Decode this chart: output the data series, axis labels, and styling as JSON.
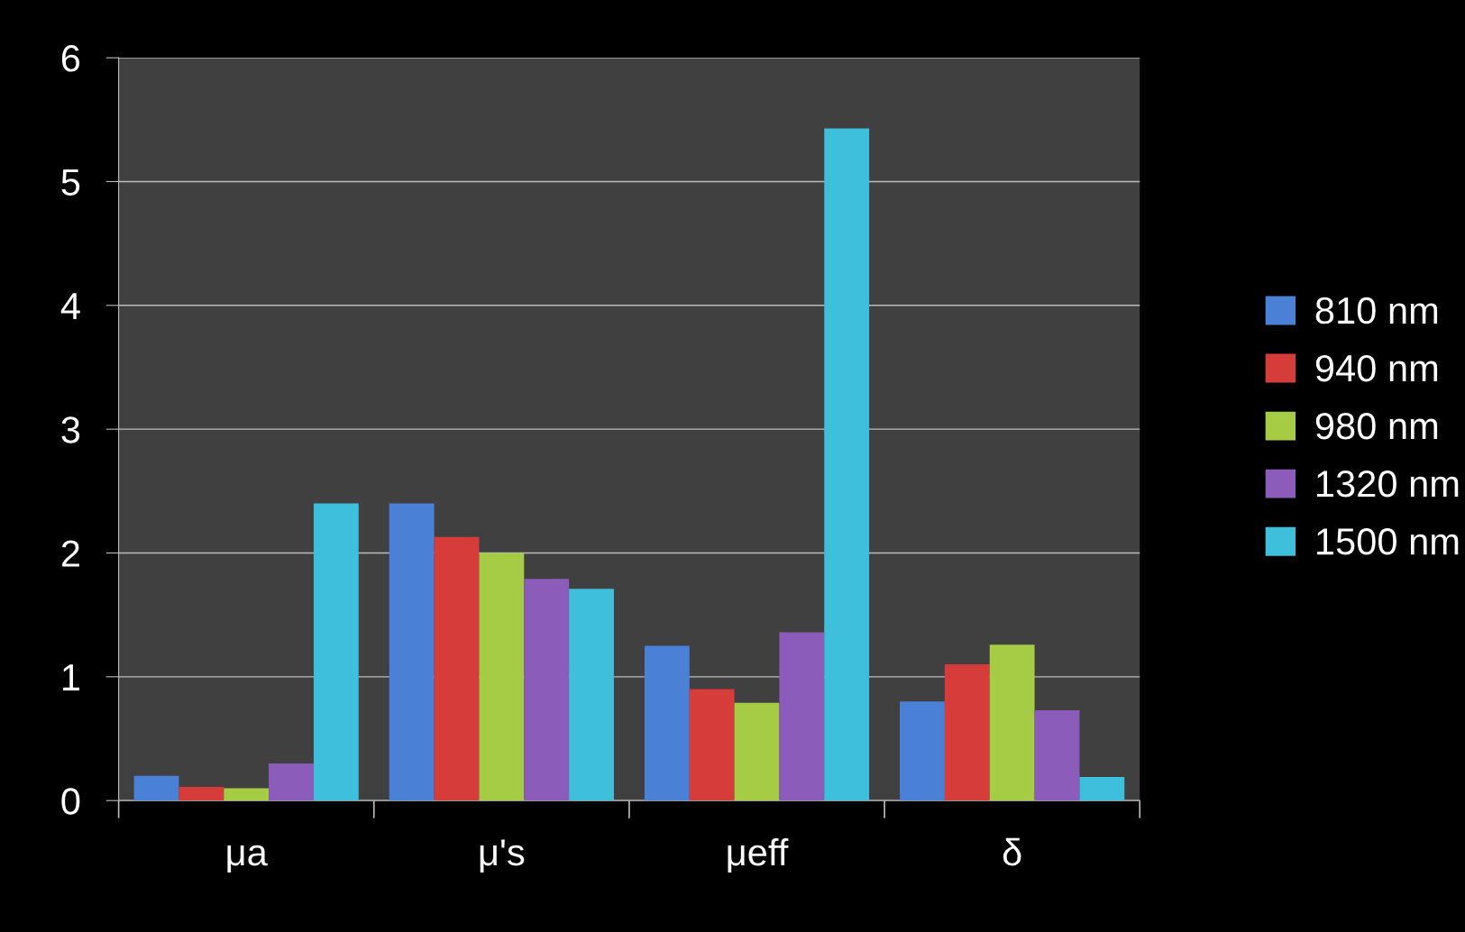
{
  "chart_data": {
    "type": "bar",
    "categories": [
      "μa",
      "μ's",
      "μeff",
      "δ"
    ],
    "series": [
      {
        "name": "810 nm",
        "color": "#4a80d6",
        "values": [
          0.2,
          2.4,
          1.25,
          0.8
        ]
      },
      {
        "name": "940 nm",
        "color": "#d63c3a",
        "values": [
          0.11,
          2.13,
          0.9,
          1.1
        ]
      },
      {
        "name": "980 nm",
        "color": "#a6cc46",
        "values": [
          0.1,
          2.0,
          0.79,
          1.26
        ]
      },
      {
        "name": "1320 nm",
        "color": "#8c5cba",
        "values": [
          0.3,
          1.79,
          1.36,
          0.73
        ]
      },
      {
        "name": "1500 nm",
        "color": "#3ebfdc",
        "values": [
          2.4,
          1.71,
          5.43,
          0.19
        ]
      }
    ],
    "ylim": [
      0,
      6
    ],
    "yticks": [
      0,
      1,
      2,
      3,
      4,
      5,
      6
    ],
    "grid": "y",
    "legend": "right"
  }
}
